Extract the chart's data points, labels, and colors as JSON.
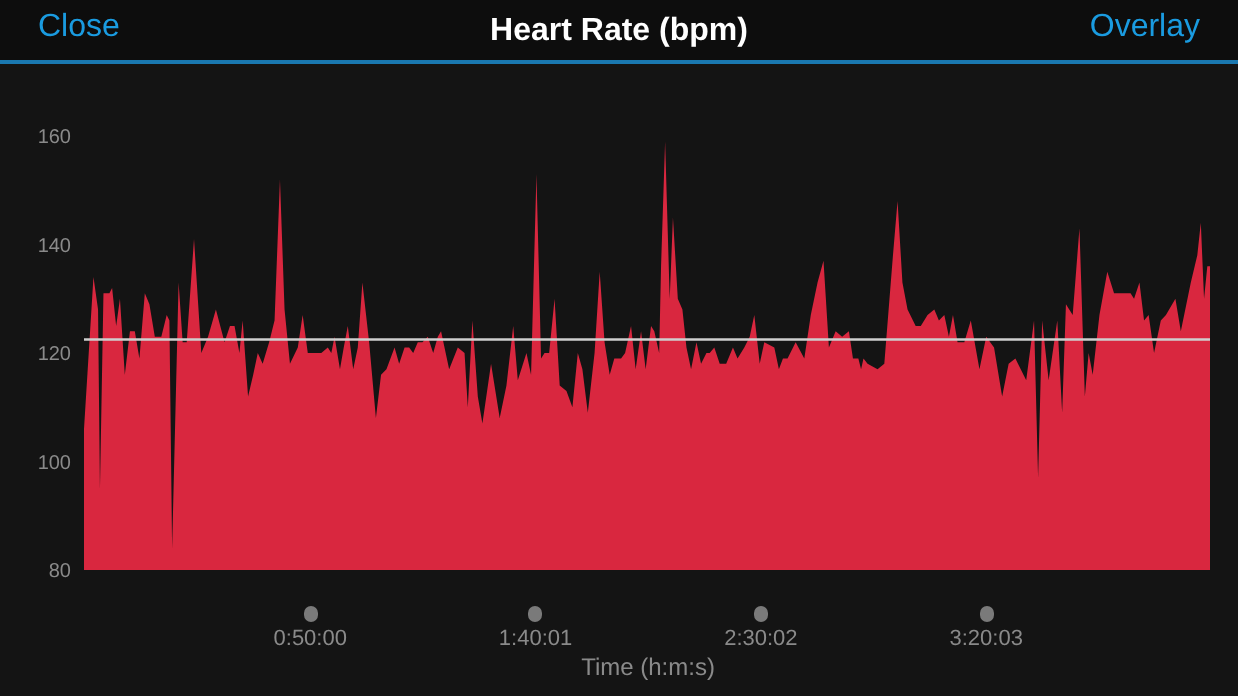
{
  "chart_data": {
    "type": "area",
    "title": "Heart Rate (bpm)",
    "xlabel": "Time (h:m:s)",
    "annotations": [
      "Close",
      "Overlay"
    ],
    "xlim": [
      0,
      4.166
    ],
    "ylim": [
      80,
      160
    ],
    "yticks": [
      80,
      100,
      120,
      140,
      160
    ],
    "xticks": [
      {
        "value": 0.8333,
        "label": "0:50:00"
      },
      {
        "value": 1.6669,
        "label": "1:40:01"
      },
      {
        "value": 2.5006,
        "label": "2:30:02"
      },
      {
        "value": 3.3342,
        "label": "3:20:03"
      }
    ],
    "grid": false,
    "ref_lines": [
      {
        "axis": "y",
        "value": 122.5,
        "color": "#cfcfcf"
      }
    ],
    "x": [
      0,
      0.035,
      0.052,
      0.059,
      0.072,
      0.094,
      0.104,
      0.119,
      0.133,
      0.151,
      0.17,
      0.188,
      0.205,
      0.225,
      0.242,
      0.262,
      0.286,
      0.306,
      0.316,
      0.326,
      0.35,
      0.365,
      0.38,
      0.407,
      0.434,
      0.459,
      0.488,
      0.52,
      0.54,
      0.557,
      0.575,
      0.587,
      0.607,
      0.626,
      0.643,
      0.661,
      0.685,
      0.705,
      0.725,
      0.742,
      0.762,
      0.791,
      0.809,
      0.828,
      0.878,
      0.902,
      0.915,
      0.927,
      0.947,
      0.961,
      0.976,
      0.996,
      1.013,
      1.03,
      1.055,
      1.08,
      1.099,
      1.119,
      1.149,
      1.166,
      1.186,
      1.203,
      1.218,
      1.235,
      1.252,
      1.272,
      1.292,
      1.309,
      1.321,
      1.351,
      1.383,
      1.408,
      1.42,
      1.437,
      1.457,
      1.474,
      1.506,
      1.538,
      1.563,
      1.588,
      1.605,
      1.637,
      1.654,
      1.674,
      1.691,
      1.704,
      1.721,
      1.741,
      1.76,
      1.785,
      1.807,
      1.827,
      1.844,
      1.864,
      1.889,
      1.908,
      1.926,
      1.945,
      1.962,
      1.987,
      2.002,
      2.024,
      2.041,
      2.061,
      2.078,
      2.098,
      2.11,
      2.128,
      2.135,
      2.15,
      2.167,
      2.179,
      2.197,
      2.214,
      2.229,
      2.246,
      2.266,
      2.283,
      2.303,
      2.315,
      2.332,
      2.352,
      2.376,
      2.401,
      2.418,
      2.443,
      2.463,
      2.48,
      2.5,
      2.517,
      2.554,
      2.571,
      2.586,
      2.603,
      2.633,
      2.665,
      2.689,
      2.714,
      2.736,
      2.756,
      2.781,
      2.805,
      2.83,
      2.845,
      2.865,
      2.875,
      2.884,
      2.899,
      2.936,
      2.961,
      2.993,
      3.01,
      3.028,
      3.047,
      3.077,
      3.096,
      3.121,
      3.146,
      3.163,
      3.183,
      3.2,
      3.215,
      3.232,
      3.257,
      3.281,
      3.313,
      3.338,
      3.367,
      3.397,
      3.421,
      3.446,
      3.486,
      3.515,
      3.53,
      3.545,
      3.569,
      3.601,
      3.619,
      3.633,
      3.658,
      3.683,
      3.703,
      3.717,
      3.732,
      3.757,
      3.786,
      3.811,
      3.848,
      3.872,
      3.885,
      3.905,
      3.922,
      3.939,
      3.959,
      3.984,
      4.003,
      4.038,
      4.058,
      4.095,
      4.119,
      4.132,
      4.144,
      4.156,
      4.166
    ],
    "series": [
      {
        "color": "#d9273f",
        "values": [
          106,
          134,
          128,
          95,
          131,
          131,
          132,
          125,
          130,
          116,
          124,
          124,
          119,
          131,
          129,
          123,
          123,
          127,
          126,
          84,
          133,
          122,
          122,
          141,
          120,
          123,
          128,
          122,
          125,
          125,
          120,
          126,
          112,
          116,
          120,
          118,
          122,
          126,
          152,
          128,
          118,
          121,
          127,
          120,
          120,
          121,
          120,
          123,
          117,
          121,
          125,
          117,
          121,
          133,
          122,
          108,
          116,
          117,
          121,
          118,
          121,
          121,
          120,
          122,
          122,
          123,
          120,
          123,
          124,
          117,
          121,
          120,
          110,
          126,
          112,
          107,
          118,
          108,
          114,
          125,
          115,
          120,
          116,
          153,
          119,
          120,
          120,
          130,
          114,
          113,
          110,
          120,
          117,
          109,
          120,
          135,
          122,
          116,
          119,
          119,
          120,
          125,
          117,
          124,
          117,
          125,
          124,
          120,
          136,
          159,
          130,
          145,
          130,
          128,
          121,
          117,
          122,
          118,
          120,
          120,
          121,
          118,
          118,
          121,
          119,
          121,
          123,
          127,
          118,
          122,
          121,
          117,
          119,
          119,
          122,
          119,
          127,
          133,
          137,
          121,
          124,
          123,
          124,
          119,
          119,
          117,
          119,
          118,
          117,
          118,
          138,
          148,
          133,
          128,
          125,
          125,
          127,
          128,
          126,
          127,
          123,
          127,
          122,
          122,
          126,
          117,
          123,
          121,
          112,
          118,
          119,
          115,
          126,
          97,
          126,
          115,
          126,
          109,
          129,
          127,
          143,
          112,
          120,
          116,
          127,
          135,
          131,
          131,
          131,
          130,
          133,
          126,
          127,
          120,
          126,
          127,
          130,
          124,
          133,
          138,
          144,
          130,
          136,
          136
        ]
      }
    ]
  }
}
